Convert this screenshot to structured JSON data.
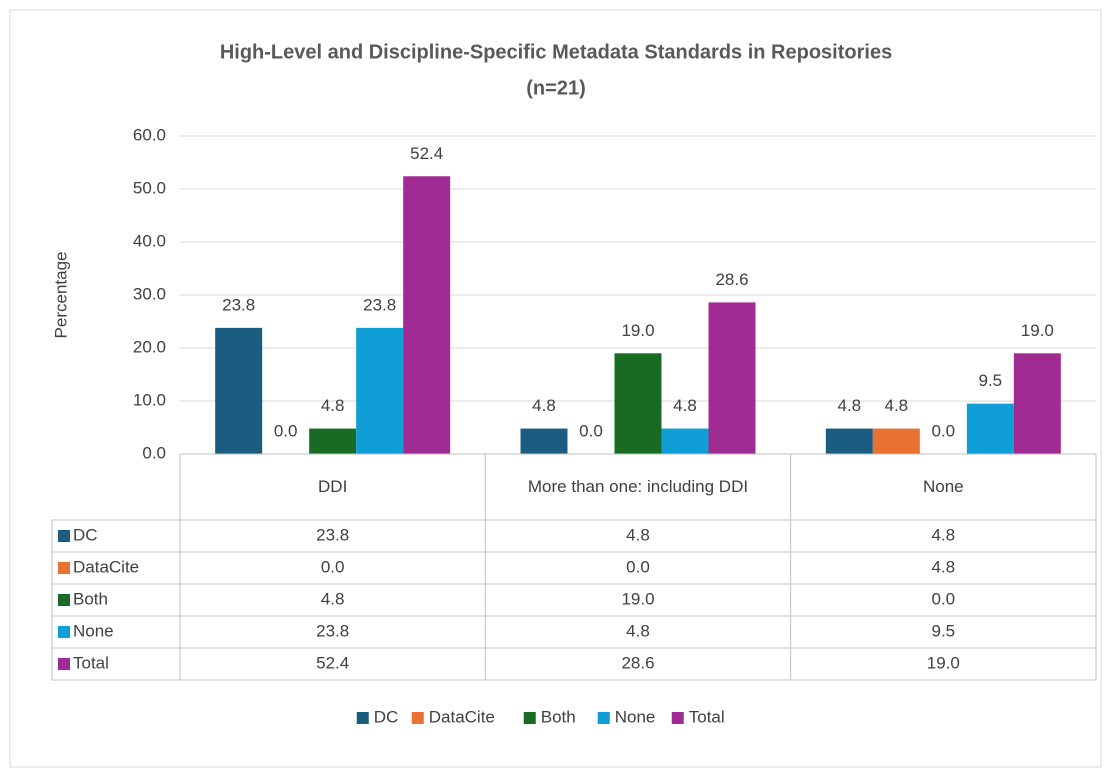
{
  "chart_data": {
    "type": "bar",
    "title": "High-Level and Discipline-Specific Metadata Standards in Repositories",
    "subtitle": "(n=21)",
    "y_label": "Percentage",
    "categories": [
      "DDI",
      "More than one: including DDI",
      "None"
    ],
    "series": [
      {
        "name": "DC",
        "color": "#1b5d80",
        "values": [
          23.8,
          4.8,
          4.8
        ],
        "value_labels": [
          "23.8",
          "4.8",
          "4.8"
        ]
      },
      {
        "name": "DataCite",
        "color": "#e97132",
        "values": [
          0,
          0,
          4.8
        ],
        "value_labels": [
          "0.0",
          "0.0",
          "4.8"
        ]
      },
      {
        "name": "Both",
        "color": "#196b24",
        "values": [
          4.8,
          19,
          0
        ],
        "value_labels": [
          "4.8",
          "19.0",
          "0.0"
        ]
      },
      {
        "name": "None",
        "color": "#0f9ed5",
        "values": [
          23.8,
          4.8,
          9.5
        ],
        "value_labels": [
          "23.8",
          "4.8",
          "9.5"
        ]
      },
      {
        "name": "Total",
        "color": "#a02b93",
        "values": [
          52.4,
          28.6,
          19
        ],
        "value_labels": [
          "52.4",
          "28.6",
          "19.0"
        ]
      }
    ],
    "ylim": [
      0,
      60
    ],
    "yticks": [
      {
        "value": 0,
        "label": "0.0"
      },
      {
        "value": 10,
        "label": "10.0"
      },
      {
        "value": 20,
        "label": "20.0"
      },
      {
        "value": 30,
        "label": "30.0"
      },
      {
        "value": 40,
        "label": "40.0"
      },
      {
        "value": 50,
        "label": "50.0"
      },
      {
        "value": 60,
        "label": "60.0"
      }
    ],
    "grid": true,
    "legend": "bottom"
  }
}
